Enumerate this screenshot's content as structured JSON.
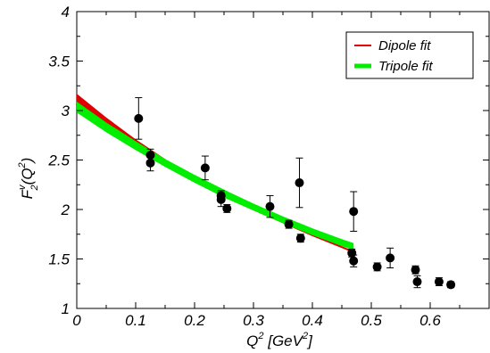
{
  "chart_data": {
    "type": "line",
    "title": "",
    "xlabel": {
      "base": "Q",
      "sup": "2",
      "unit_open": " [GeV",
      "unit_sup": "2",
      "unit_close": "]"
    },
    "ylabel": {
      "F": "F",
      "sup": "v",
      "sub": "2",
      "open": "(Q",
      "inner_sup": "2",
      "close": ")"
    },
    "xlim": [
      0,
      0.7
    ],
    "ylim": [
      1,
      4
    ],
    "x_ticks": [
      "0",
      "0.1",
      "0.2",
      "0.3",
      "0.4",
      "0.5",
      "0.6"
    ],
    "y_ticks": [
      "1",
      "1.5",
      "2",
      "2.5",
      "3",
      "3.5",
      "4"
    ],
    "grid": false,
    "legend": {
      "placement": "top-right",
      "entries": [
        {
          "label": "Dipole fit",
          "color": "#e00000"
        },
        {
          "label": "Tripole fit",
          "color": "#00ee00"
        }
      ]
    },
    "series": [
      {
        "name": "Dipole fit",
        "color": "#e00000",
        "x": [
          0,
          0.05,
          0.1,
          0.15,
          0.2,
          0.25,
          0.3,
          0.35,
          0.4,
          0.45,
          0.47
        ],
        "lower": [
          3.07,
          2.85,
          2.65,
          2.46,
          2.29,
          2.13,
          1.99,
          1.86,
          1.73,
          1.61,
          1.56
        ],
        "upper": [
          3.17,
          2.93,
          2.71,
          2.51,
          2.33,
          2.17,
          2.02,
          1.88,
          1.75,
          1.63,
          1.58
        ]
      },
      {
        "name": "Tripole fit",
        "color": "#00ee00",
        "x": [
          0,
          0.05,
          0.1,
          0.15,
          0.2,
          0.25,
          0.3,
          0.35,
          0.4,
          0.45,
          0.47
        ],
        "lower": [
          2.98,
          2.78,
          2.6,
          2.43,
          2.27,
          2.12,
          1.99,
          1.86,
          1.74,
          1.63,
          1.59
        ],
        "upper": [
          3.09,
          2.88,
          2.69,
          2.51,
          2.35,
          2.2,
          2.06,
          1.93,
          1.81,
          1.7,
          1.66
        ]
      }
    ],
    "points": [
      {
        "x": 0.105,
        "y": 2.92,
        "err": 0.21
      },
      {
        "x": 0.125,
        "y": 2.55,
        "err": 0.06
      },
      {
        "x": 0.125,
        "y": 2.47,
        "err": 0.08
      },
      {
        "x": 0.218,
        "y": 2.42,
        "err": 0.12
      },
      {
        "x": 0.245,
        "y": 2.14,
        "err": 0.05
      },
      {
        "x": 0.245,
        "y": 2.1,
        "err": 0.07
      },
      {
        "x": 0.255,
        "y": 2.01,
        "err": 0.04
      },
      {
        "x": 0.328,
        "y": 2.03,
        "err": 0.11
      },
      {
        "x": 0.36,
        "y": 1.85,
        "err": 0.04
      },
      {
        "x": 0.378,
        "y": 2.27,
        "err": 0.25
      },
      {
        "x": 0.38,
        "y": 1.71,
        "err": 0.04
      },
      {
        "x": 0.467,
        "y": 1.56,
        "err": 0.04
      },
      {
        "x": 0.47,
        "y": 1.98,
        "err": 0.2
      },
      {
        "x": 0.47,
        "y": 1.48,
        "err": 0.06
      },
      {
        "x": 0.51,
        "y": 1.42,
        "err": 0.04
      },
      {
        "x": 0.532,
        "y": 1.51,
        "err": 0.1
      },
      {
        "x": 0.575,
        "y": 1.39,
        "err": 0.04
      },
      {
        "x": 0.578,
        "y": 1.27,
        "err": 0.06
      },
      {
        "x": 0.615,
        "y": 1.27,
        "err": 0.04
      },
      {
        "x": 0.635,
        "y": 1.24,
        "err": 0.03
      }
    ]
  }
}
